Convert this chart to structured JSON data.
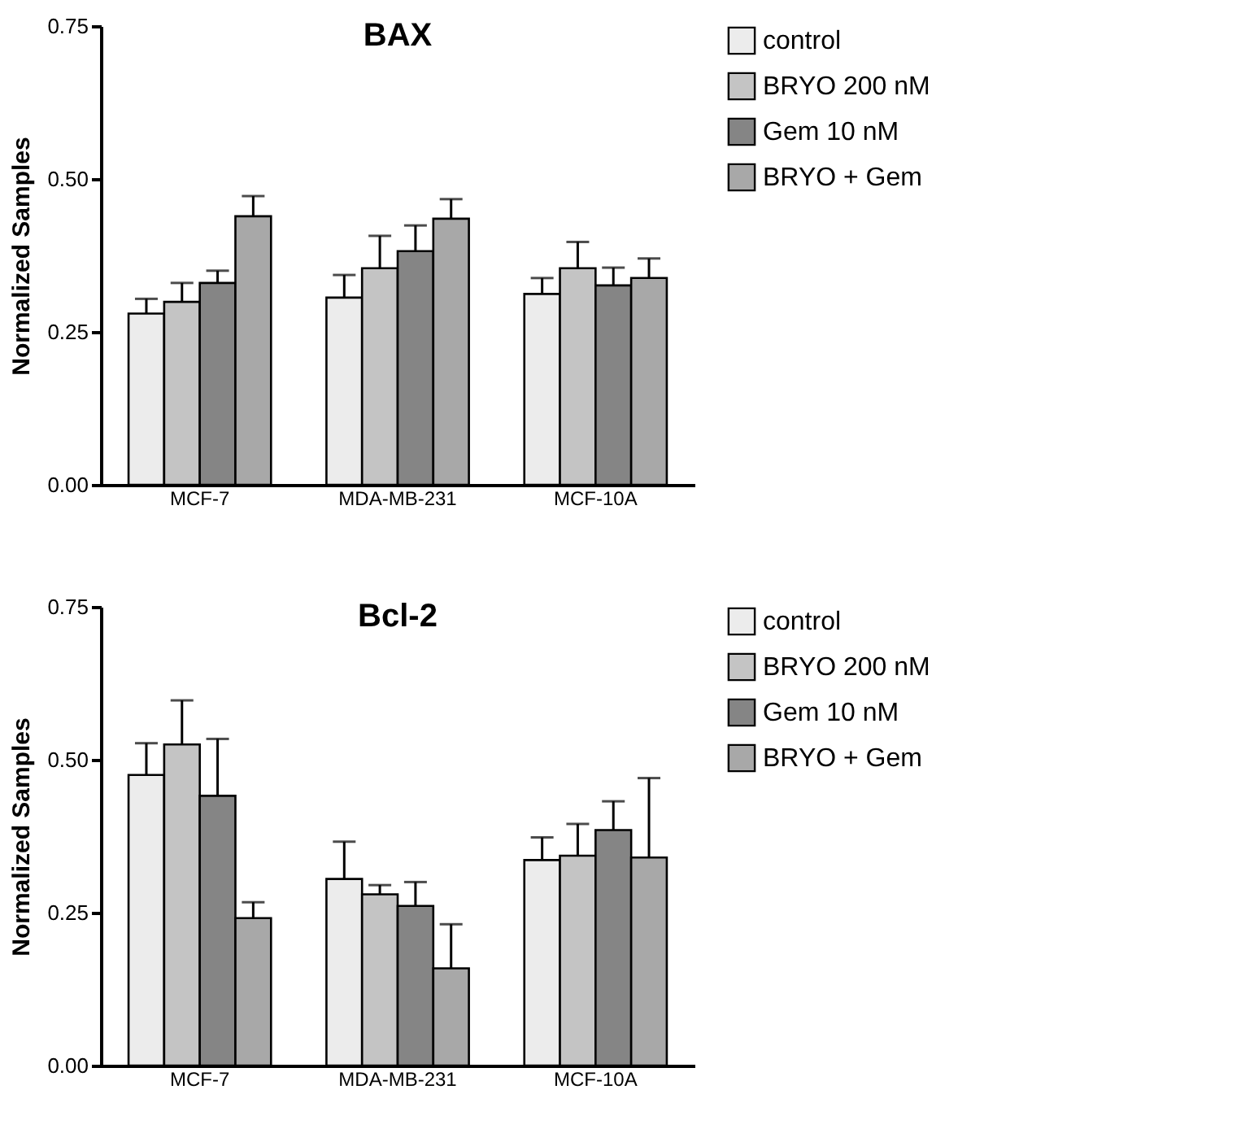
{
  "chart_data": [
    {
      "type": "bar",
      "title": "BAX",
      "ylabel": "Normalized Samples",
      "categories": [
        "MCF-7",
        "MDA-MB-231",
        "MCF-10A"
      ],
      "ylim": [
        0,
        0.75
      ],
      "yticks": [
        {
          "value": 0,
          "label": "0.00"
        },
        {
          "value": 0.25,
          "label": "0.25"
        },
        {
          "value": 0.5,
          "label": "0.50"
        },
        {
          "value": 0.75,
          "label": "0.75"
        }
      ],
      "grid": false,
      "legend": "top right",
      "series": [
        {
          "name": "control",
          "color": "#ececec",
          "values": [
            0.28,
            0.306,
            0.312
          ],
          "errors": [
            0.024,
            0.037,
            0.026
          ]
        },
        {
          "name": "BRYO 200 nM",
          "color": "#c4c4c4",
          "values": [
            0.299,
            0.354,
            0.354
          ],
          "errors": [
            0.031,
            0.053,
            0.043
          ]
        },
        {
          "name": "Gem 10 nM",
          "color": "#858585",
          "values": [
            0.33,
            0.382,
            0.326
          ],
          "errors": [
            0.02,
            0.042,
            0.029
          ]
        },
        {
          "name": "BRYO + Gem",
          "color": "#a8a8a8",
          "values": [
            0.439,
            0.435,
            0.338
          ],
          "errors": [
            0.033,
            0.032,
            0.032
          ]
        }
      ]
    },
    {
      "type": "bar",
      "title": "Bcl-2",
      "ylabel": "Normalized Samples",
      "categories": [
        "MCF-7",
        "MDA-MB-231",
        "MCF-10A"
      ],
      "ylim": [
        0,
        0.75
      ],
      "yticks": [
        {
          "value": 0,
          "label": "0.00"
        },
        {
          "value": 0.25,
          "label": "0.25"
        },
        {
          "value": 0.5,
          "label": "0.50"
        },
        {
          "value": 0.75,
          "label": "0.75"
        }
      ],
      "grid": false,
      "legend": "top right",
      "series": [
        {
          "name": "control",
          "color": "#ececec",
          "values": [
            0.475,
            0.305,
            0.336
          ],
          "errors": [
            0.052,
            0.061,
            0.037
          ]
        },
        {
          "name": "BRYO 200 nM",
          "color": "#c4c4c4",
          "values": [
            0.525,
            0.28,
            0.343
          ],
          "errors": [
            0.072,
            0.015,
            0.052
          ]
        },
        {
          "name": "Gem 10 nM",
          "color": "#858585",
          "values": [
            0.441,
            0.261,
            0.385
          ],
          "errors": [
            0.093,
            0.039,
            0.047
          ]
        },
        {
          "name": "BRYO + Gem",
          "color": "#a8a8a8",
          "values": [
            0.241,
            0.159,
            0.34
          ],
          "errors": [
            0.026,
            0.072,
            0.13
          ]
        }
      ]
    }
  ]
}
